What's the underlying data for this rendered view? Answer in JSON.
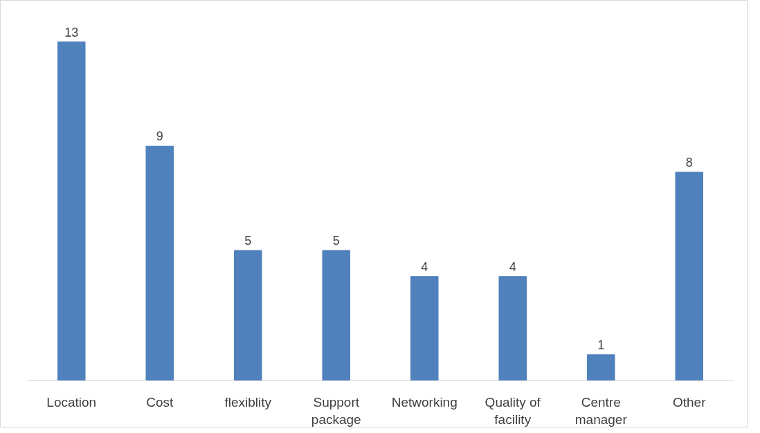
{
  "chart_data": {
    "type": "bar",
    "categories": [
      "Location",
      "Cost",
      "flexiblity",
      "Support package",
      "Networking",
      "Quality of facility",
      "Centre manager",
      "Other"
    ],
    "values": [
      13,
      9,
      5,
      5,
      4,
      4,
      1,
      8
    ],
    "color": "#4f81bd",
    "data_labels": true,
    "grid": false
  }
}
